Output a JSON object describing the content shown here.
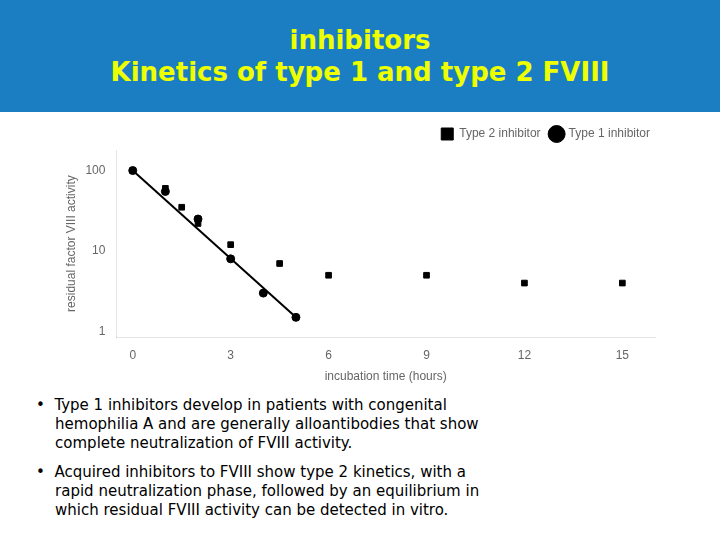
{
  "chart_data": {
    "type": "scatter",
    "title": [
      "inhibitors",
      "Kinetics of type 1 and type 2 FVIII"
    ],
    "x_label": "incubation time (hours)",
    "y_label": "residual factor VIII activity",
    "series": [
      {
        "name": "Type 2 inhibitor",
        "type": "scatter",
        "marker": "square",
        "color": "#000000",
        "x": [
          0,
          1,
          1.5,
          2,
          3,
          4.5,
          6,
          9,
          12,
          15
        ],
        "values": [
          100,
          60,
          35,
          22,
          12,
          7,
          5,
          5,
          4,
          4
        ]
      },
      {
        "name": "Type 1 inhibitor",
        "type": "scatter",
        "marker": "circle",
        "color": "#000000",
        "x": [
          0,
          1,
          2,
          3,
          4,
          5
        ],
        "values": [
          100,
          55,
          25,
          8,
          3,
          1.5
        ]
      },
      {
        "type": "line",
        "line_style": "solid",
        "color": "#000000",
        "x": [
          0,
          5
        ],
        "values": [
          100,
          1.5
        ]
      }
    ],
    "xlim": [
      -0.5,
      16
    ],
    "xticks": [
      0,
      3,
      6,
      9,
      12,
      15
    ],
    "ylim": [
      0.85,
      180
    ],
    "yticks": [
      1,
      10,
      100
    ],
    "log": "y",
    "grid": false,
    "legend": "upper right",
    "annotations": [
      "•  Type 1 inhibitors develop in patients with congenital\n    hemophilia A and are generally alloantibodies that show\n    complete neutralization of FVIII activity.",
      "•  Acquired inhibitors to FVIII show type 2 kinetics, with a\n    rapid neutralization phase, followed by an equilibrium in\n    which residual FVIII activity can be detected in vitro."
    ]
  }
}
